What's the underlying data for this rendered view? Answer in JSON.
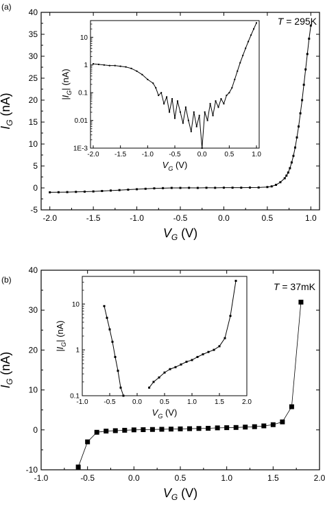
{
  "chart_data": [
    {
      "panel_label": "(a)",
      "type": "scatter",
      "annotation_var": "T",
      "annotation_val": " = 295K",
      "x_var": "V",
      "x_sub": "G",
      "x_unit": " (V)",
      "y_var": "I",
      "y_sub": "G",
      "y_unit": " (nA)",
      "xlim": [
        -2.1,
        1.1
      ],
      "ylim": [
        -5,
        40
      ],
      "x_ticks": [
        -2.0,
        -1.5,
        -1.0,
        -0.5,
        0.0,
        0.5,
        1.0
      ],
      "x_tick_labels": [
        "-2.0",
        "-1.5",
        "-1.0",
        "-0.5",
        "0.0",
        "0.5",
        "1.0"
      ],
      "y_ticks": [
        -5,
        0,
        5,
        10,
        15,
        20,
        25,
        30,
        35,
        40
      ],
      "y_tick_labels": [
        "-5",
        "0",
        "5",
        "10",
        "15",
        "20",
        "25",
        "30",
        "35",
        "40"
      ],
      "x": [
        -2.0,
        -1.9,
        -1.8,
        -1.7,
        -1.6,
        -1.5,
        -1.4,
        -1.3,
        -1.2,
        -1.1,
        -1.0,
        -0.9,
        -0.8,
        -0.7,
        -0.6,
        -0.5,
        -0.4,
        -0.3,
        -0.2,
        -0.1,
        0.0,
        0.1,
        0.2,
        0.3,
        0.4,
        0.5,
        0.55,
        0.6,
        0.65,
        0.7,
        0.72,
        0.74,
        0.76,
        0.78,
        0.8,
        0.82,
        0.84,
        0.86,
        0.88,
        0.9,
        0.92,
        0.94,
        0.96,
        0.98,
        1.0
      ],
      "y": [
        -1.0,
        -0.98,
        -0.95,
        -0.9,
        -0.85,
        -0.8,
        -0.7,
        -0.6,
        -0.5,
        -0.4,
        -0.3,
        -0.2,
        -0.1,
        -0.05,
        0.0,
        0.0,
        0.02,
        0.0,
        0.03,
        0.02,
        0.05,
        0.05,
        0.05,
        0.08,
        0.1,
        0.2,
        0.35,
        0.7,
        1.3,
        2.2,
        2.8,
        3.5,
        4.5,
        5.8,
        7.3,
        9.2,
        11.5,
        14.0,
        17.0,
        20.0,
        23.5,
        27.0,
        30.5,
        34.0,
        37.0
      ],
      "inset": {
        "x_var": "V",
        "x_sub": "G",
        "x_unit": " (V)",
        "y_var": "|I",
        "y_sub": "G",
        "y_unit": "| (nA)",
        "y_scale": "log",
        "xlim": [
          -2.05,
          1.05
        ],
        "ylim": [
          0.001,
          40
        ],
        "x_ticks": [
          -2.0,
          -1.5,
          -1.0,
          -0.5,
          0.0,
          0.5,
          1.0
        ],
        "x_tick_labels": [
          "-2.0",
          "-1.5",
          "-1.0",
          "-0.5",
          "0.0",
          "0.5",
          "1.0"
        ],
        "y_ticks": [
          0.001,
          0.01,
          0.1,
          1,
          10
        ],
        "y_tick_labels": [
          "1E-3",
          "0.01",
          "0.1",
          "1",
          "10"
        ],
        "x": [
          -2.0,
          -1.9,
          -1.8,
          -1.7,
          -1.6,
          -1.5,
          -1.4,
          -1.3,
          -1.2,
          -1.1,
          -1.0,
          -0.9,
          -0.85,
          -0.8,
          -0.75,
          -0.7,
          -0.65,
          -0.6,
          -0.55,
          -0.5,
          -0.45,
          -0.4,
          -0.35,
          -0.3,
          -0.25,
          -0.2,
          -0.15,
          -0.1,
          -0.05,
          0.0,
          0.05,
          0.1,
          0.15,
          0.2,
          0.25,
          0.3,
          0.35,
          0.4,
          0.45,
          0.5,
          0.55,
          0.6,
          0.65,
          0.7,
          0.75,
          0.8,
          0.85,
          0.9,
          0.95,
          1.0
        ],
        "y": [
          1.1,
          1.05,
          1.0,
          0.95,
          0.95,
          0.9,
          0.85,
          0.75,
          0.6,
          0.45,
          0.3,
          0.22,
          0.15,
          0.08,
          0.1,
          0.04,
          0.07,
          0.02,
          0.06,
          0.012,
          0.05,
          0.02,
          0.008,
          0.03,
          0.01,
          0.004,
          0.02,
          0.006,
          0.015,
          0.001,
          0.02,
          0.01,
          0.04,
          0.015,
          0.05,
          0.03,
          0.06,
          0.04,
          0.08,
          0.1,
          0.15,
          0.3,
          0.6,
          1.2,
          2.2,
          4.0,
          7.0,
          12.0,
          20.0,
          33.0
        ]
      }
    },
    {
      "panel_label": "(b)",
      "type": "line",
      "annotation_var": "T",
      "annotation_val": " = 37mK",
      "x_var": "V",
      "x_sub": "G",
      "x_unit": " (V)",
      "y_var": "I",
      "y_sub": "G",
      "y_unit": " (nA)",
      "xlim": [
        -1.0,
        2.0
      ],
      "ylim": [
        -10,
        40
      ],
      "x_ticks": [
        -1.0,
        -0.5,
        0.0,
        0.5,
        1.0,
        1.5,
        2.0
      ],
      "x_tick_labels": [
        "-1.0",
        "-0.5",
        "0.0",
        "0.5",
        "1.0",
        "1.5",
        "2.0"
      ],
      "y_ticks": [
        -10,
        0,
        10,
        20,
        30,
        40
      ],
      "y_tick_labels": [
        "-10",
        "0",
        "10",
        "20",
        "30",
        "40"
      ],
      "x": [
        -0.6,
        -0.5,
        -0.4,
        -0.3,
        -0.2,
        -0.1,
        0.0,
        0.1,
        0.2,
        0.3,
        0.4,
        0.5,
        0.6,
        0.7,
        0.8,
        0.9,
        1.0,
        1.1,
        1.2,
        1.3,
        1.4,
        1.5,
        1.6,
        1.7,
        1.8
      ],
      "y": [
        -9.3,
        -3.0,
        -0.6,
        -0.3,
        -0.2,
        -0.1,
        0.0,
        0.05,
        0.1,
        0.15,
        0.2,
        0.25,
        0.3,
        0.35,
        0.4,
        0.5,
        0.55,
        0.6,
        0.7,
        0.8,
        1.0,
        1.3,
        2.0,
        5.8,
        32.0
      ],
      "inset": {
        "x_var": "V",
        "x_sub": "G",
        "x_unit": " (V)",
        "y_var": "|I",
        "y_sub": "G",
        "y_unit": "| (nA)",
        "y_scale": "log",
        "xlim": [
          -1.0,
          2.0
        ],
        "ylim": [
          0.1,
          40
        ],
        "x_ticks": [
          -1.0,
          -0.5,
          0.0,
          0.5,
          1.0,
          1.5,
          2.0
        ],
        "x_tick_labels": [
          "-1.0",
          "-0.5",
          "0.0",
          "0.5",
          "1.0",
          "1.5",
          "2.0"
        ],
        "y_ticks": [
          0.1,
          1,
          10
        ],
        "y_tick_labels": [
          "0.1",
          "1",
          "10"
        ],
        "segments": [
          {
            "x": [
              -0.6,
              -0.55,
              -0.5,
              -0.45,
              -0.4,
              -0.35,
              -0.3,
              -0.25
            ],
            "y": [
              9.0,
              5.0,
              2.8,
              1.5,
              0.7,
              0.35,
              0.15,
              0.1
            ]
          },
          {
            "x": [
              0.22,
              0.3,
              0.4,
              0.5,
              0.6,
              0.7,
              0.8,
              0.9,
              1.0,
              1.1,
              1.2,
              1.3,
              1.4,
              1.5,
              1.6,
              1.7,
              1.8
            ],
            "y": [
              0.15,
              0.2,
              0.25,
              0.32,
              0.38,
              0.42,
              0.48,
              0.55,
              0.6,
              0.7,
              0.8,
              0.9,
              1.0,
              1.2,
              1.8,
              5.5,
              32.0
            ]
          }
        ]
      }
    }
  ]
}
